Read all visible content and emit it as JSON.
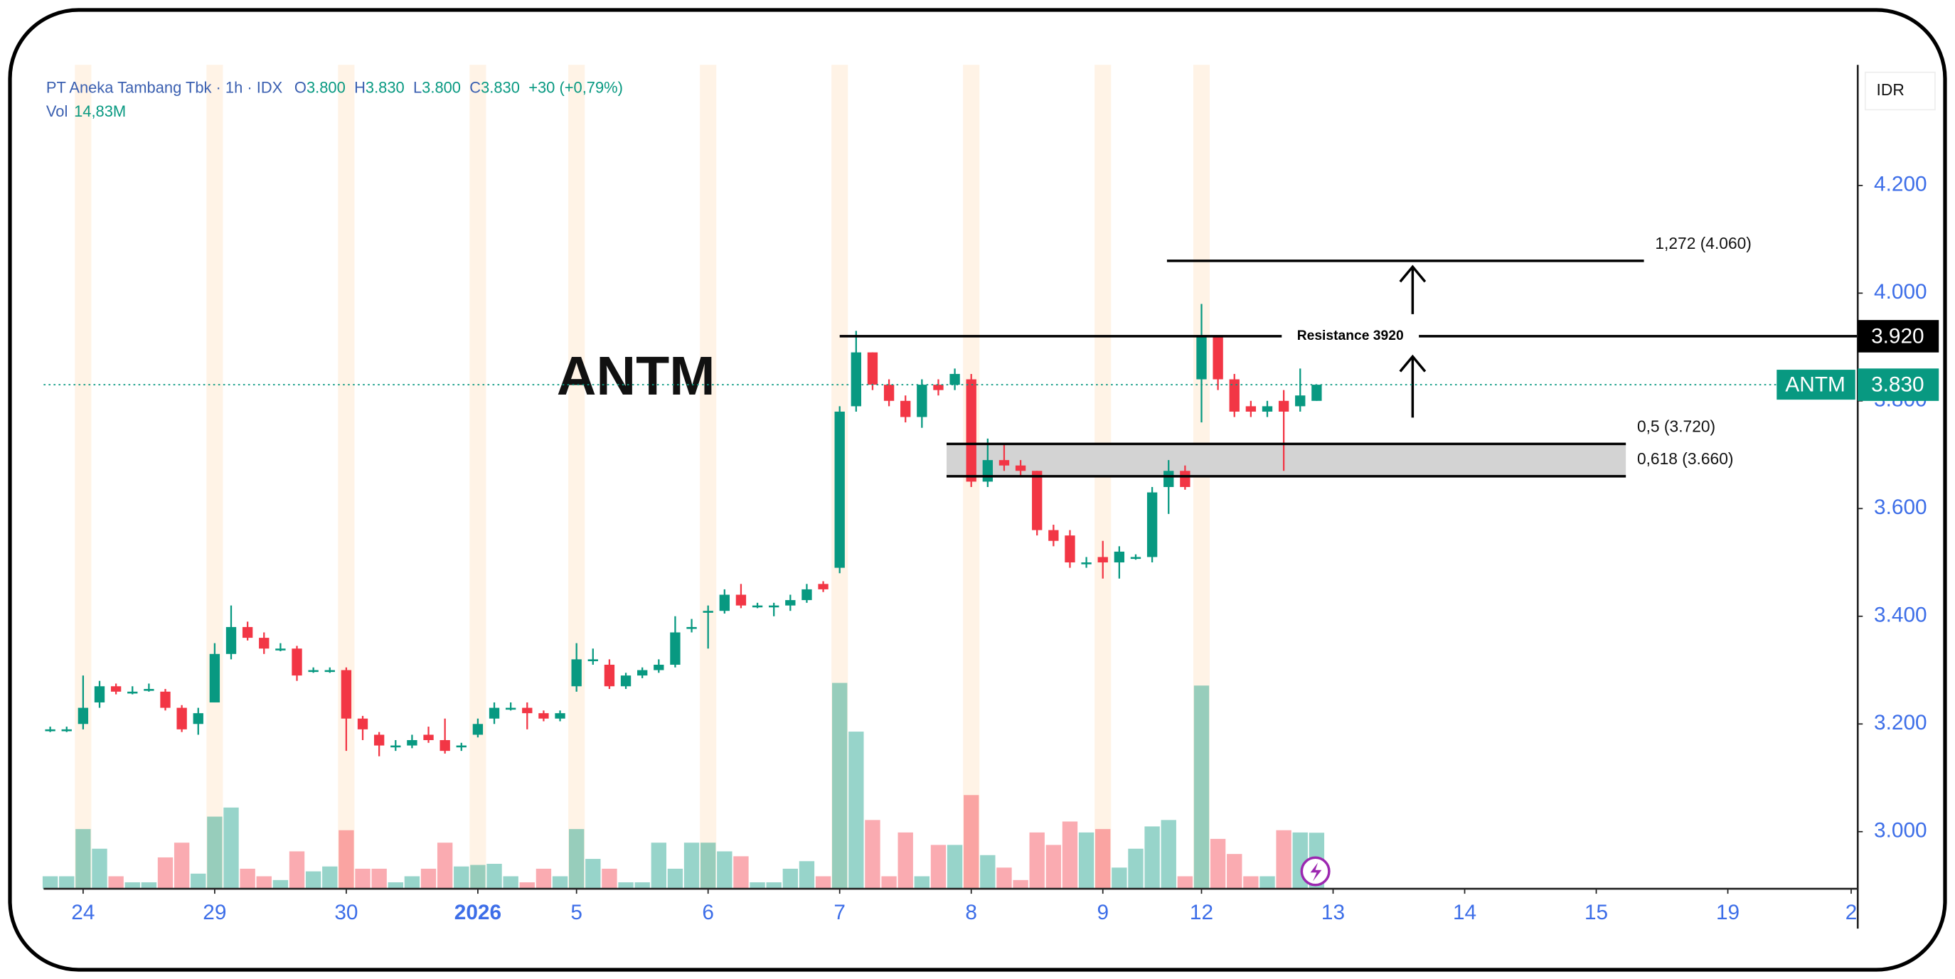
{
  "chart_data": {
    "type": "candlestick",
    "symbol": "ANTM",
    "legend": {
      "title": "PT Aneka Tambang Tbk · 1h · IDX",
      "items": [
        {
          "key": "O",
          "value": "3.800"
        },
        {
          "key": "H",
          "value": "3.830"
        },
        {
          "key": "L",
          "value": "3.800"
        },
        {
          "key": "C",
          "value": "3.830"
        }
      ],
      "change": "+30 (+0,79%)",
      "volume_key": "Vol",
      "volume": "14,83M"
    },
    "currency": "IDR",
    "x": [
      0,
      1,
      2,
      3,
      4,
      5,
      6,
      7,
      8,
      9,
      10,
      11,
      12,
      13,
      14,
      15,
      16,
      17,
      18,
      19,
      20,
      21,
      22,
      23,
      24,
      25,
      26,
      27,
      28,
      29,
      30,
      31,
      32,
      33,
      34,
      35,
      36,
      37,
      38,
      39,
      40,
      41,
      42,
      43,
      44,
      45,
      46,
      47,
      48,
      49,
      50,
      51,
      52,
      53,
      54,
      55,
      56,
      57,
      58,
      59,
      60,
      61,
      62,
      63,
      64,
      65,
      66,
      67,
      68,
      69,
      70,
      71,
      72,
      73,
      74,
      75,
      76,
      77
    ],
    "open": [
      3190,
      3190,
      3200,
      3240,
      3270,
      3260,
      3265,
      3260,
      3230,
      3200,
      3240,
      3330,
      3380,
      3360,
      3340,
      3340,
      3300,
      3300,
      3300,
      3210,
      3180,
      3160,
      3160,
      3180,
      3170,
      3160,
      3180,
      3210,
      3230,
      3230,
      3220,
      3210,
      3270,
      3320,
      3310,
      3270,
      3290,
      3300,
      3310,
      3380,
      3410,
      3410,
      3440,
      3420,
      3420,
      3420,
      3430,
      3460,
      3490,
      3790,
      3890,
      3830,
      3800,
      3770,
      3830,
      3830,
      3840,
      3650,
      3690,
      3680,
      3670,
      3560,
      3550,
      3500,
      3510,
      3500,
      3510,
      3510,
      3640,
      3670,
      3840,
      3920,
      3840,
      3790,
      3780,
      3800,
      3790,
      3800
    ],
    "high": [
      3195,
      3195,
      3290,
      3280,
      3275,
      3270,
      3275,
      3265,
      3235,
      3230,
      3350,
      3420,
      3390,
      3370,
      3350,
      3345,
      3305,
      3305,
      3305,
      3215,
      3185,
      3170,
      3180,
      3195,
      3210,
      3165,
      3210,
      3240,
      3240,
      3240,
      3225,
      3225,
      3350,
      3340,
      3320,
      3295,
      3305,
      3320,
      3400,
      3395,
      3420,
      3450,
      3460,
      3425,
      3425,
      3440,
      3460,
      3465,
      3790,
      3930,
      3890,
      3840,
      3810,
      3840,
      3840,
      3860,
      3850,
      3730,
      3720,
      3690,
      3670,
      3570,
      3560,
      3510,
      3540,
      3530,
      3515,
      3640,
      3690,
      3680,
      3980,
      3920,
      3850,
      3800,
      3800,
      3820,
      3860,
      3830
    ],
    "low": [
      3185,
      3185,
      3190,
      3230,
      3255,
      3255,
      3260,
      3225,
      3185,
      3180,
      3240,
      3320,
      3355,
      3330,
      3335,
      3280,
      3295,
      3295,
      3150,
      3170,
      3140,
      3150,
      3155,
      3165,
      3145,
      3150,
      3175,
      3200,
      3225,
      3190,
      3205,
      3205,
      3260,
      3310,
      3265,
      3265,
      3285,
      3295,
      3305,
      3370,
      3340,
      3405,
      3415,
      3415,
      3400,
      3410,
      3425,
      3445,
      3480,
      3780,
      3820,
      3790,
      3760,
      3750,
      3810,
      3820,
      3640,
      3640,
      3670,
      3660,
      3550,
      3530,
      3490,
      3490,
      3470,
      3470,
      3505,
      3500,
      3590,
      3635,
      3760,
      3820,
      3770,
      3770,
      3770,
      3670,
      3780,
      3800
    ],
    "close": [
      3190,
      3190,
      3230,
      3270,
      3260,
      3260,
      3265,
      3230,
      3190,
      3220,
      3330,
      3380,
      3360,
      3340,
      3340,
      3290,
      3300,
      3300,
      3210,
      3190,
      3160,
      3160,
      3170,
      3170,
      3150,
      3160,
      3200,
      3230,
      3230,
      3220,
      3210,
      3220,
      3320,
      3320,
      3270,
      3290,
      3300,
      3310,
      3370,
      3380,
      3410,
      3440,
      3420,
      3420,
      3420,
      3430,
      3450,
      3450,
      3780,
      3890,
      3830,
      3800,
      3770,
      3830,
      3820,
      3850,
      3650,
      3690,
      3680,
      3670,
      3560,
      3540,
      3500,
      3500,
      3500,
      3520,
      3510,
      3630,
      3670,
      3640,
      3920,
      3840,
      3780,
      3780,
      3790,
      3780,
      3810,
      3830
    ],
    "volume": [
      3.3,
      3.3,
      15.8,
      10.6,
      3.3,
      1.7,
      1.7,
      8.3,
      12.2,
      4.0,
      19.1,
      21.5,
      5.3,
      3.3,
      2.3,
      9.9,
      4.6,
      5.9,
      15.5,
      5.3,
      5.3,
      1.7,
      3.3,
      5.3,
      12.2,
      5.9,
      6.3,
      6.6,
      3.3,
      1.7,
      5.3,
      3.3,
      15.8,
      7.9,
      5.3,
      1.7,
      1.7,
      12.2,
      5.3,
      12.2,
      12.2,
      9.9,
      8.6,
      1.7,
      1.7,
      5.3,
      7.3,
      3.3,
      54.5,
      41.6,
      18.2,
      3.3,
      14.9,
      3.3,
      11.6,
      11.6,
      24.8,
      8.9,
      5.6,
      2.3,
      14.9,
      11.6,
      17.8,
      14.9,
      15.8,
      5.6,
      10.6,
      16.5,
      18.2,
      3.3,
      53.8,
      13.2,
      9.2,
      3.3,
      3.3,
      15.5,
      14.9,
      14.83
    ],
    "up_color": "#089981",
    "down_color": "#f23645",
    "xlim": [
      -0.4,
      109.9
    ],
    "xticks": [
      {
        "value": 2,
        "label": "24"
      },
      {
        "value": 10,
        "label": "29"
      },
      {
        "value": 18,
        "label": "30"
      },
      {
        "value": 26,
        "label": "2026",
        "bold": true
      },
      {
        "value": 32,
        "label": "5"
      },
      {
        "value": 40,
        "label": "6"
      },
      {
        "value": 48,
        "label": "7"
      },
      {
        "value": 56,
        "label": "8"
      },
      {
        "value": 64,
        "label": "9"
      },
      {
        "value": 70,
        "label": "12"
      },
      {
        "value": 78,
        "label": "13"
      },
      {
        "value": 86,
        "label": "14"
      },
      {
        "value": 94,
        "label": "15"
      },
      {
        "value": 102,
        "label": "19"
      },
      {
        "value": 109.5,
        "label": "2"
      }
    ],
    "ylim": [
      2894,
      4424
    ],
    "yticks": [
      {
        "value": 3000,
        "label": "3.000"
      },
      {
        "value": 3200,
        "label": "3.200"
      },
      {
        "value": 3400,
        "label": "3.400"
      },
      {
        "value": 3600,
        "label": "3.600"
      },
      {
        "value": 3800,
        "label": "3.800"
      },
      {
        "value": 4000,
        "label": "4.000"
      },
      {
        "value": 4200,
        "label": "4.200"
      }
    ],
    "levels": [
      {
        "label": "1,272 (4.060)",
        "value": 4060
      },
      {
        "label": "Resistance 3920",
        "value": 3920
      },
      {
        "label": "0,5 (3.720)",
        "value": 3720
      },
      {
        "label": "0,618 (3.660)",
        "value": 3660
      }
    ],
    "price_tags": [
      {
        "label": "3.920",
        "value": 3920,
        "color": "#000000"
      },
      {
        "name": "ANTM",
        "label": "3.830",
        "value": 3830,
        "color": "#089981"
      }
    ]
  }
}
